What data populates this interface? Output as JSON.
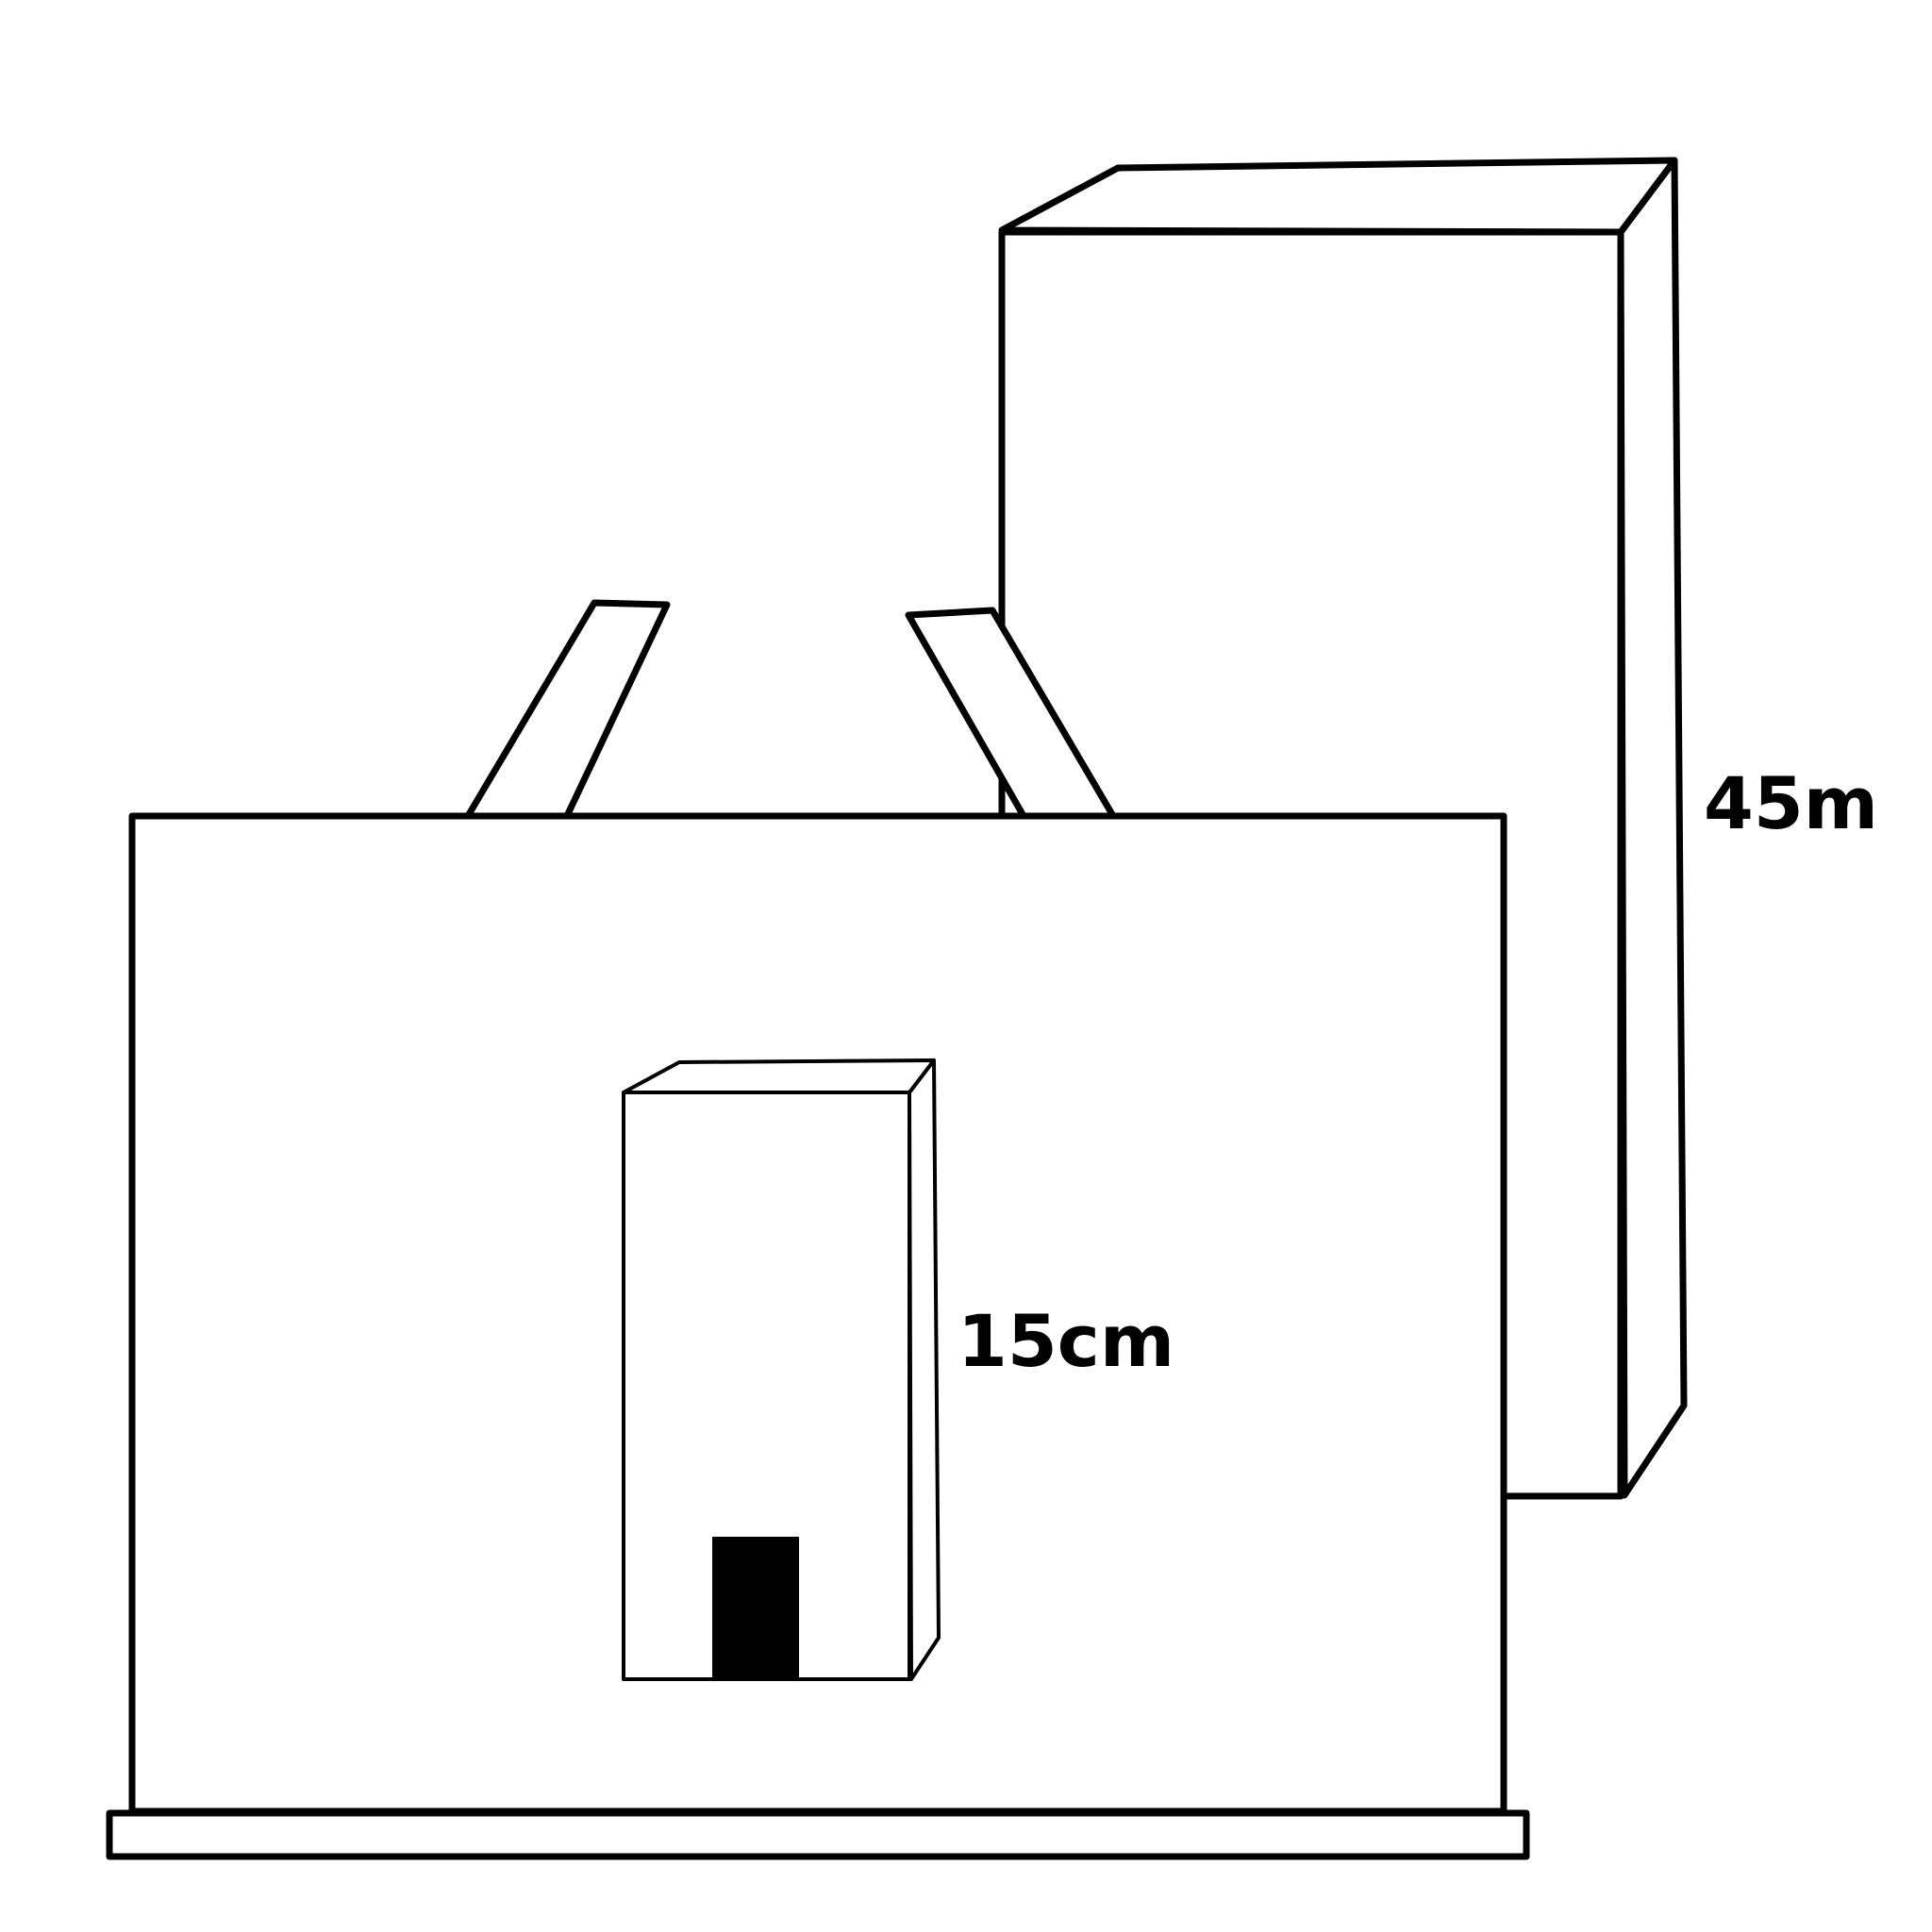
{
  "diagram": {
    "colors": {
      "stroke": "#000000",
      "fill": "#ffffff",
      "door": "#000000"
    },
    "labels": {
      "tall_building_height": "45m",
      "small_box_height": "15cm"
    }
  }
}
